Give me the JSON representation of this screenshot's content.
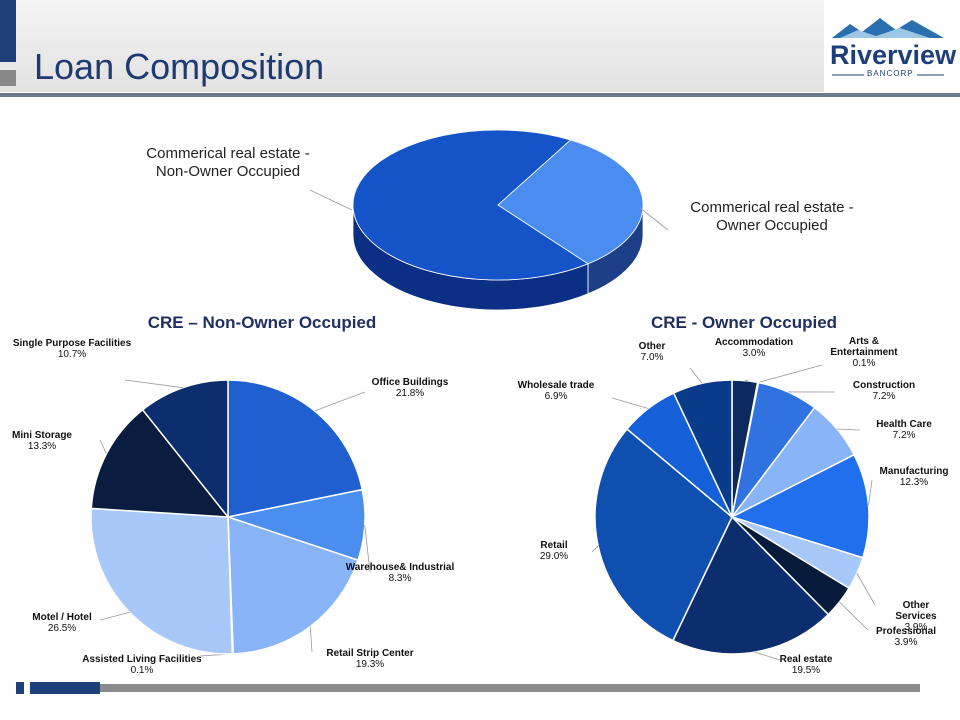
{
  "header": {
    "title": "Loan Composition",
    "logo_name": "Riverview",
    "logo_sub": "BANCORP"
  },
  "chart_data": [
    {
      "type": "pie3d",
      "categories": [
        "Commerical real estate - Non-Owner Occupied",
        "Commerical real estate - Owner Occupied"
      ],
      "values": [
        69,
        31
      ],
      "colors": [
        "#1554c8",
        "#4b8cf0"
      ]
    },
    {
      "type": "pie",
      "title": "CRE – Non-Owner Occupied",
      "categories": [
        "Office Buildings",
        "Warehouse& Industrial",
        "Retail Strip Center",
        "Assisted Living Facilities",
        "Motel / Hotel",
        "Mini Storage",
        "Single Purpose Facilities"
      ],
      "values": [
        21.8,
        8.3,
        19.3,
        0.1,
        26.5,
        13.3,
        10.7
      ],
      "value_labels": [
        "21.8%",
        "8.3%",
        "19.3%",
        "0.1%",
        "26.5%",
        "13.3%",
        "10.7%"
      ],
      "colors": [
        "#1f5fcf",
        "#4a8ef0",
        "#8ab4f8",
        "#5f8fe0",
        "#a9c8fa",
        "#0a1c40",
        "#0d2e6e"
      ]
    },
    {
      "type": "pie",
      "title": "CRE - Owner Occupied",
      "categories": [
        "Accommodation",
        "Arts & Entertainment",
        "Construction",
        "Health Care",
        "Manufacturing",
        "Other Services",
        "Professional",
        "Real estate",
        "Retail",
        "Wholesale trade",
        "Other"
      ],
      "values": [
        3.0,
        0.1,
        7.2,
        7.2,
        12.3,
        3.9,
        3.9,
        19.5,
        29.0,
        6.9,
        7.0
      ],
      "value_labels": [
        "3.0%",
        "0.1%",
        "7.2%",
        "7.2%",
        "12.3%",
        "3.9%",
        "3.9%",
        "19.5%",
        "29.0%",
        "6.9%",
        "7.0%"
      ],
      "colors": [
        "#0d2a5e",
        "#1a4aa0",
        "#2f72e0",
        "#8ab4f8",
        "#1f6fef",
        "#a9c8fa",
        "#061a3a",
        "#0d2e6e",
        "#0f4fb0",
        "#1560d8",
        "#0a3a8a"
      ]
    }
  ]
}
